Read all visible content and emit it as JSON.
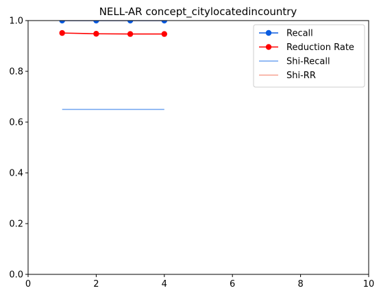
{
  "chart_data": {
    "type": "line",
    "title": "NELL-AR concept_citylocatedincountry",
    "xlabel": "",
    "ylabel": "",
    "xlim": [
      0,
      10
    ],
    "ylim": [
      0,
      1.0
    ],
    "xticks": [
      0,
      2,
      4,
      6,
      8,
      10
    ],
    "yticks": [
      0.0,
      0.2,
      0.4,
      0.6,
      0.8,
      1.0
    ],
    "xtick_labels": [
      "0",
      "2",
      "4",
      "6",
      "8",
      "10"
    ],
    "ytick_labels": [
      "0.0",
      "0.2",
      "0.4",
      "0.6",
      "0.8",
      "1.0"
    ],
    "grid": false,
    "legend_position": "top-right",
    "series": [
      {
        "name": "Recall",
        "x": [
          1,
          2,
          3,
          4
        ],
        "y": [
          1.0,
          1.0,
          1.0,
          1.0
        ],
        "color": "#0a5ce0",
        "marker": true,
        "alpha": 1.0
      },
      {
        "name": "Reduction Rate",
        "x": [
          1,
          2,
          3,
          4
        ],
        "y": [
          0.951,
          0.948,
          0.947,
          0.947
        ],
        "color": "#ff0000",
        "marker": true,
        "alpha": 1.0
      },
      {
        "name": "Shi-Recall",
        "x": [
          1,
          4
        ],
        "y": [
          0.65,
          0.65
        ],
        "color": "#6fa3f0",
        "marker": false,
        "alpha": 1.0
      },
      {
        "name": "Shi-RR",
        "x": [
          1,
          4
        ],
        "y": [
          1.0,
          1.0
        ],
        "color": "#f7a08f",
        "marker": false,
        "alpha": 1.0
      }
    ]
  }
}
